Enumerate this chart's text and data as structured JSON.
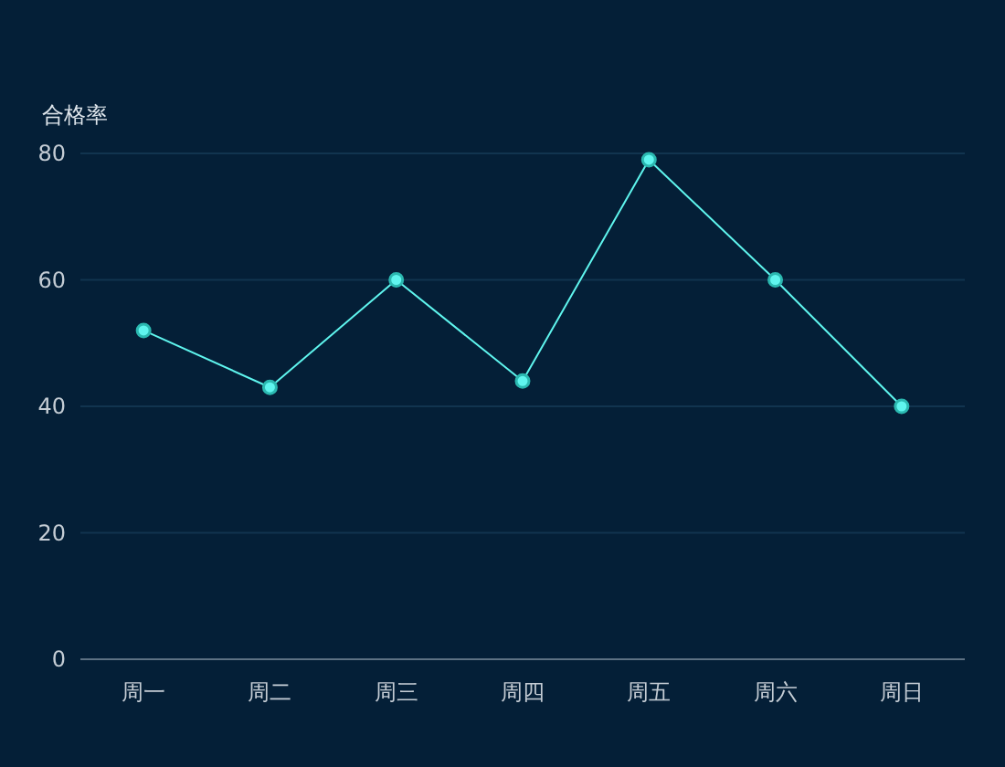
{
  "chart_data": {
    "type": "line",
    "ylabel": "合格率",
    "categories": [
      "周一",
      "周二",
      "周三",
      "周四",
      "周五",
      "周六",
      "周日"
    ],
    "series": [
      {
        "color": "#5ff5ee",
        "values": [
          52,
          43,
          60,
          44,
          79,
          60,
          40
        ]
      }
    ],
    "ylim": [
      0,
      80
    ],
    "yticks": [
      0,
      20,
      40,
      60,
      80
    ],
    "grid": "y",
    "marker": "circle",
    "line_style": "solid"
  }
}
